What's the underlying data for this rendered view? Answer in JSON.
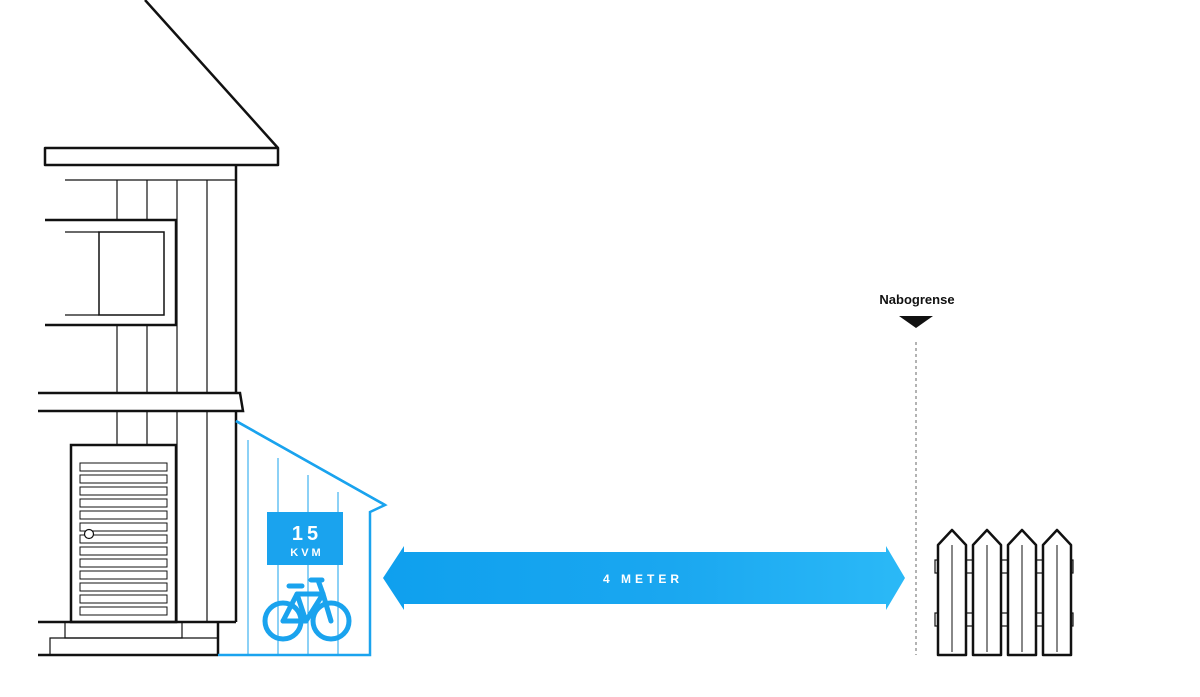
{
  "annex": {
    "area_number": "15",
    "area_unit": "KVM"
  },
  "distance": {
    "label": "4 METER"
  },
  "boundary": {
    "label": "Nabogrense"
  },
  "colors": {
    "accent": "#1aa3ee",
    "accent_light": "#29b6f6",
    "line": "#111111",
    "dashed": "#9a9a9a"
  },
  "icons": {
    "annex": "bicycle-icon",
    "boundary": "triangle-down-icon"
  }
}
